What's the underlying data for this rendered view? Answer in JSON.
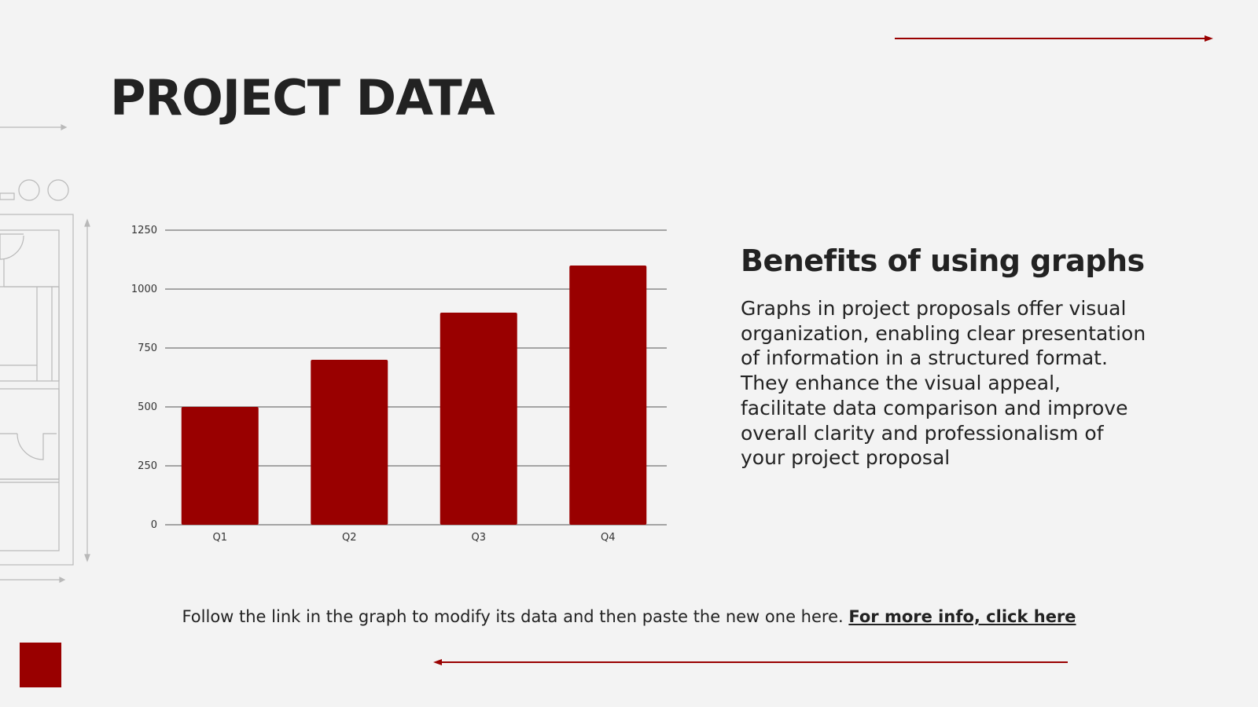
{
  "title": "PROJECT DATA",
  "benefits": {
    "heading": "Benefits of using graphs",
    "body": "Graphs in project proposals offer visual organization, enabling clear presentation of information in a structured format. They enhance the visual appeal, facilitate data comparison and improve overall clarity and professionalism of your project proposal"
  },
  "footer": {
    "text": "Follow the link in the graph to modify its data and then paste the new one here.",
    "link_label": "For more info, click here"
  },
  "colors": {
    "accent": "#990000",
    "background": "#f3f3f3",
    "text": "#222222",
    "grid": "#8a8a8a"
  },
  "chart_data": {
    "type": "bar",
    "categories": [
      "Q1",
      "Q2",
      "Q3",
      "Q4"
    ],
    "values": [
      500,
      700,
      900,
      1100
    ],
    "title": "",
    "xlabel": "",
    "ylabel": "",
    "ylim": [
      0,
      1250
    ],
    "yticks": [
      0,
      250,
      500,
      750,
      1000,
      1250
    ],
    "grid": true,
    "legend": "none",
    "bar_color": "#990000"
  }
}
